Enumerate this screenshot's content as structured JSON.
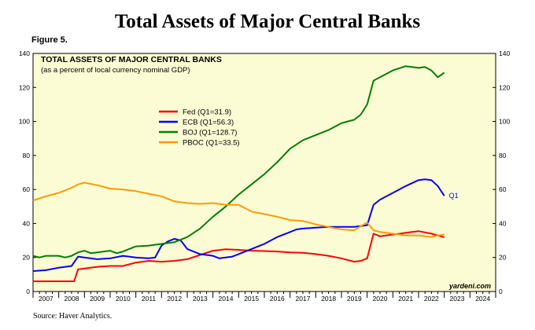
{
  "page": {
    "title": "Total Assets of Major Central Banks",
    "figure_label": "Figure 5.",
    "source": "Source: Haver Analytics."
  },
  "chart_data": {
    "type": "line",
    "title": "TOTAL ASSETS OF MAJOR CENTRAL BANKS",
    "subtitle": "(as a percent of local currency nominal GDP)",
    "watermark": "yardeni.com",
    "end_label": "Q1",
    "x_ticks": [
      "2007",
      "2008",
      "2009",
      "2010",
      "2011",
      "2012",
      "2013",
      "2014",
      "2015",
      "2016",
      "2017",
      "2018",
      "2019",
      "2020",
      "2021",
      "2022",
      "2023",
      "2024"
    ],
    "xlim": [
      2007,
      2025
    ],
    "ylim": [
      0,
      140
    ],
    "y_ticks": [
      0,
      20,
      40,
      60,
      80,
      100,
      120,
      140
    ],
    "colors": {
      "background": "#fcfcd4",
      "Fed": "#ff0000",
      "ECB": "#0000ff",
      "BOJ": "#008000",
      "PBOC": "#ff9900"
    },
    "legend_placement": "upper-left",
    "series": [
      {
        "name": "Fed (Q1=31.9)",
        "key": "Fed",
        "points": [
          [
            2007.0,
            6
          ],
          [
            2008.0,
            6
          ],
          [
            2008.6,
            6
          ],
          [
            2008.75,
            13
          ],
          [
            2009.0,
            13.5
          ],
          [
            2009.5,
            14.5
          ],
          [
            2010.0,
            15
          ],
          [
            2010.5,
            15
          ],
          [
            2011.0,
            17
          ],
          [
            2011.5,
            18
          ],
          [
            2012.0,
            17.5
          ],
          [
            2012.5,
            18
          ],
          [
            2013.0,
            19
          ],
          [
            2013.5,
            21.5
          ],
          [
            2014.0,
            24
          ],
          [
            2014.5,
            24.8
          ],
          [
            2015.0,
            24.5
          ],
          [
            2015.5,
            24
          ],
          [
            2016.0,
            23.8
          ],
          [
            2016.5,
            23.5
          ],
          [
            2017.0,
            23
          ],
          [
            2017.5,
            22.8
          ],
          [
            2018.0,
            22
          ],
          [
            2018.5,
            21
          ],
          [
            2019.0,
            19.5
          ],
          [
            2019.5,
            17.5
          ],
          [
            2019.75,
            18
          ],
          [
            2020.0,
            19.5
          ],
          [
            2020.25,
            34
          ],
          [
            2020.5,
            32.5
          ],
          [
            2021.0,
            33.5
          ],
          [
            2021.5,
            34.5
          ],
          [
            2022.0,
            35.5
          ],
          [
            2022.5,
            34
          ],
          [
            2022.75,
            33
          ],
          [
            2023.0,
            31.9
          ]
        ]
      },
      {
        "name": "ECB (Q1=56.3)",
        "key": "ECB",
        "points": [
          [
            2007.0,
            12
          ],
          [
            2007.5,
            12.5
          ],
          [
            2008.0,
            14
          ],
          [
            2008.5,
            15
          ],
          [
            2008.75,
            20.5
          ],
          [
            2009.0,
            20
          ],
          [
            2009.5,
            19
          ],
          [
            2010.0,
            19.5
          ],
          [
            2010.5,
            21
          ],
          [
            2011.0,
            20
          ],
          [
            2011.5,
            19.5
          ],
          [
            2011.75,
            20
          ],
          [
            2012.0,
            27
          ],
          [
            2012.25,
            29.5
          ],
          [
            2012.5,
            31
          ],
          [
            2012.75,
            30
          ],
          [
            2013.0,
            25
          ],
          [
            2013.5,
            22
          ],
          [
            2014.0,
            21
          ],
          [
            2014.25,
            19.5
          ],
          [
            2014.75,
            20.5
          ],
          [
            2015.0,
            22
          ],
          [
            2015.5,
            25
          ],
          [
            2016.0,
            28
          ],
          [
            2016.5,
            32
          ],
          [
            2017.0,
            35
          ],
          [
            2017.25,
            36.5
          ],
          [
            2017.5,
            37
          ],
          [
            2018.0,
            37.5
          ],
          [
            2018.5,
            38
          ],
          [
            2019.0,
            38
          ],
          [
            2019.5,
            38
          ],
          [
            2020.0,
            39
          ],
          [
            2020.25,
            51
          ],
          [
            2020.5,
            54
          ],
          [
            2021.0,
            58
          ],
          [
            2021.5,
            62
          ],
          [
            2022.0,
            65.5
          ],
          [
            2022.25,
            66
          ],
          [
            2022.5,
            65.5
          ],
          [
            2022.75,
            62
          ],
          [
            2023.0,
            56.3
          ]
        ]
      },
      {
        "name": "BOJ (Q1=128.7)",
        "key": "BOJ",
        "points": [
          [
            2007.0,
            21
          ],
          [
            2007.25,
            20
          ],
          [
            2007.5,
            21
          ],
          [
            2008.0,
            21
          ],
          [
            2008.25,
            20
          ],
          [
            2008.5,
            21
          ],
          [
            2008.75,
            23
          ],
          [
            2009.0,
            24
          ],
          [
            2009.25,
            22.5
          ],
          [
            2009.5,
            23
          ],
          [
            2010.0,
            24
          ],
          [
            2010.25,
            22.5
          ],
          [
            2010.5,
            23.5
          ],
          [
            2011.0,
            26.5
          ],
          [
            2011.5,
            27
          ],
          [
            2012.0,
            28
          ],
          [
            2012.5,
            29
          ],
          [
            2013.0,
            32
          ],
          [
            2013.5,
            37
          ],
          [
            2014.0,
            44
          ],
          [
            2014.5,
            50
          ],
          [
            2015.0,
            57
          ],
          [
            2015.5,
            63
          ],
          [
            2016.0,
            69
          ],
          [
            2016.5,
            76
          ],
          [
            2017.0,
            84
          ],
          [
            2017.5,
            89
          ],
          [
            2018.0,
            92
          ],
          [
            2018.5,
            95
          ],
          [
            2019.0,
            99
          ],
          [
            2019.5,
            101
          ],
          [
            2019.75,
            104
          ],
          [
            2020.0,
            110
          ],
          [
            2020.25,
            124
          ],
          [
            2020.5,
            126
          ],
          [
            2021.0,
            130
          ],
          [
            2021.5,
            132.5
          ],
          [
            2022.0,
            131.5
          ],
          [
            2022.25,
            132
          ],
          [
            2022.5,
            130
          ],
          [
            2022.75,
            126
          ],
          [
            2023.0,
            128.7
          ]
        ]
      },
      {
        "name": "PBOC (Q1=33.5)",
        "key": "PBOC",
        "points": [
          [
            2007.0,
            53.5
          ],
          [
            2007.5,
            56
          ],
          [
            2008.0,
            58
          ],
          [
            2008.5,
            61
          ],
          [
            2008.75,
            63
          ],
          [
            2009.0,
            64
          ],
          [
            2009.5,
            62.5
          ],
          [
            2010.0,
            60.5
          ],
          [
            2010.5,
            60
          ],
          [
            2011.0,
            59
          ],
          [
            2011.5,
            57.5
          ],
          [
            2012.0,
            56
          ],
          [
            2012.5,
            53
          ],
          [
            2013.0,
            52
          ],
          [
            2013.5,
            51.5
          ],
          [
            2014.0,
            52
          ],
          [
            2014.5,
            51
          ],
          [
            2015.0,
            51
          ],
          [
            2015.5,
            47
          ],
          [
            2016.0,
            45.5
          ],
          [
            2016.5,
            44
          ],
          [
            2017.0,
            42
          ],
          [
            2017.5,
            41.5
          ],
          [
            2018.0,
            39.5
          ],
          [
            2018.5,
            38
          ],
          [
            2019.0,
            36.5
          ],
          [
            2019.5,
            36
          ],
          [
            2019.75,
            38.5
          ],
          [
            2020.0,
            40.5
          ],
          [
            2020.25,
            36
          ],
          [
            2020.5,
            35
          ],
          [
            2021.0,
            34
          ],
          [
            2021.5,
            33
          ],
          [
            2022.0,
            33
          ],
          [
            2022.5,
            32
          ],
          [
            2022.75,
            33
          ],
          [
            2023.0,
            33.5
          ]
        ]
      }
    ]
  }
}
